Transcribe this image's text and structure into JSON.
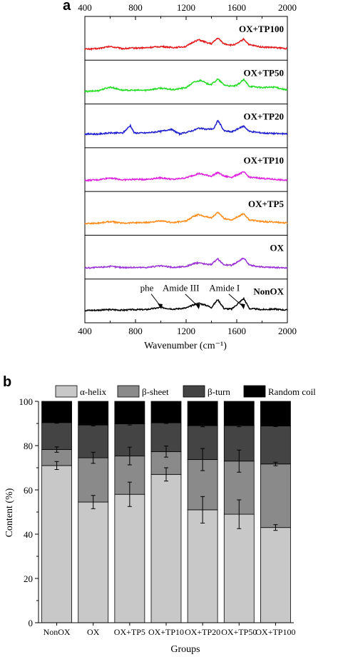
{
  "panels": {
    "a_label": "a",
    "b_label": "b"
  },
  "chart_data": [
    {
      "type": "line",
      "subtype": "stacked-spectra",
      "xlabel": "Wavenumber (cm⁻¹)",
      "xlim": [
        400,
        2000
      ],
      "xticks": [
        400,
        800,
        1200,
        1600,
        2000
      ],
      "grid": false,
      "series": [
        {
          "name": "OX+TP100",
          "color": "#e31a1c",
          "points": [
            [
              400,
              0.2
            ],
            [
              500,
              0.22
            ],
            [
              600,
              0.3
            ],
            [
              700,
              0.22
            ],
            [
              780,
              0.24
            ],
            [
              880,
              0.25
            ],
            [
              1000,
              0.3
            ],
            [
              1100,
              0.26
            ],
            [
              1200,
              0.3
            ],
            [
              1260,
              0.48
            ],
            [
              1300,
              0.55
            ],
            [
              1360,
              0.45
            ],
            [
              1400,
              0.4
            ],
            [
              1450,
              0.62
            ],
            [
              1500,
              0.4
            ],
            [
              1560,
              0.35
            ],
            [
              1600,
              0.4
            ],
            [
              1655,
              0.58
            ],
            [
              1700,
              0.36
            ],
            [
              1800,
              0.28
            ],
            [
              1900,
              0.26
            ],
            [
              2000,
              0.22
            ]
          ]
        },
        {
          "name": "OX+TP50",
          "color": "#22dd22",
          "points": [
            [
              400,
              0.25
            ],
            [
              500,
              0.28
            ],
            [
              600,
              0.42
            ],
            [
              700,
              0.3
            ],
            [
              780,
              0.3
            ],
            [
              880,
              0.3
            ],
            [
              1000,
              0.38
            ],
            [
              1100,
              0.32
            ],
            [
              1200,
              0.4
            ],
            [
              1260,
              0.6
            ],
            [
              1320,
              0.68
            ],
            [
              1360,
              0.55
            ],
            [
              1400,
              0.52
            ],
            [
              1450,
              0.72
            ],
            [
              1500,
              0.5
            ],
            [
              1560,
              0.45
            ],
            [
              1600,
              0.48
            ],
            [
              1655,
              0.7
            ],
            [
              1700,
              0.45
            ],
            [
              1800,
              0.4
            ],
            [
              1900,
              0.42
            ],
            [
              2000,
              0.3
            ]
          ]
        },
        {
          "name": "OX+TP20",
          "color": "#1f1fd0",
          "points": [
            [
              400,
              0.3
            ],
            [
              500,
              0.3
            ],
            [
              600,
              0.34
            ],
            [
              700,
              0.34
            ],
            [
              760,
              0.62
            ],
            [
              790,
              0.34
            ],
            [
              880,
              0.34
            ],
            [
              1000,
              0.4
            ],
            [
              1080,
              0.48
            ],
            [
              1150,
              0.3
            ],
            [
              1200,
              0.36
            ],
            [
              1260,
              0.44
            ],
            [
              1300,
              0.52
            ],
            [
              1360,
              0.48
            ],
            [
              1420,
              0.5
            ],
            [
              1450,
              0.82
            ],
            [
              1500,
              0.42
            ],
            [
              1560,
              0.38
            ],
            [
              1655,
              0.6
            ],
            [
              1700,
              0.4
            ],
            [
              1800,
              0.34
            ],
            [
              1900,
              0.32
            ],
            [
              2000,
              0.3
            ]
          ]
        },
        {
          "name": "OX+TP10",
          "color": "#e020e0",
          "points": [
            [
              400,
              0.2
            ],
            [
              500,
              0.22
            ],
            [
              600,
              0.3
            ],
            [
              700,
              0.22
            ],
            [
              780,
              0.24
            ],
            [
              880,
              0.24
            ],
            [
              1000,
              0.3
            ],
            [
              1100,
              0.24
            ],
            [
              1200,
              0.3
            ],
            [
              1260,
              0.4
            ],
            [
              1300,
              0.46
            ],
            [
              1360,
              0.4
            ],
            [
              1400,
              0.36
            ],
            [
              1450,
              0.5
            ],
            [
              1500,
              0.36
            ],
            [
              1560,
              0.32
            ],
            [
              1655,
              0.52
            ],
            [
              1700,
              0.32
            ],
            [
              1800,
              0.28
            ],
            [
              1900,
              0.24
            ],
            [
              2000,
              0.2
            ]
          ]
        },
        {
          "name": "OX+TP5",
          "color": "#ff8c1a",
          "points": [
            [
              400,
              0.22
            ],
            [
              500,
              0.24
            ],
            [
              600,
              0.3
            ],
            [
              700,
              0.24
            ],
            [
              780,
              0.26
            ],
            [
              880,
              0.26
            ],
            [
              1000,
              0.32
            ],
            [
              1100,
              0.26
            ],
            [
              1200,
              0.32
            ],
            [
              1260,
              0.5
            ],
            [
              1300,
              0.56
            ],
            [
              1360,
              0.48
            ],
            [
              1400,
              0.44
            ],
            [
              1450,
              0.64
            ],
            [
              1500,
              0.42
            ],
            [
              1560,
              0.36
            ],
            [
              1655,
              0.6
            ],
            [
              1700,
              0.36
            ],
            [
              1800,
              0.3
            ],
            [
              1900,
              0.28
            ],
            [
              2000,
              0.24
            ]
          ]
        },
        {
          "name": "OX",
          "color": "#9b30d9",
          "points": [
            [
              400,
              0.2
            ],
            [
              500,
              0.22
            ],
            [
              600,
              0.26
            ],
            [
              700,
              0.22
            ],
            [
              780,
              0.22
            ],
            [
              880,
              0.22
            ],
            [
              1000,
              0.28
            ],
            [
              1100,
              0.22
            ],
            [
              1200,
              0.26
            ],
            [
              1260,
              0.36
            ],
            [
              1300,
              0.4
            ],
            [
              1360,
              0.34
            ],
            [
              1400,
              0.34
            ],
            [
              1450,
              0.54
            ],
            [
              1500,
              0.32
            ],
            [
              1560,
              0.3
            ],
            [
              1655,
              0.58
            ],
            [
              1700,
              0.3
            ],
            [
              1800,
              0.24
            ],
            [
              1900,
              0.22
            ],
            [
              2000,
              0.2
            ]
          ]
        },
        {
          "name": "NonOX",
          "color": "#000000",
          "points": [
            [
              400,
              0.25
            ],
            [
              500,
              0.26
            ],
            [
              600,
              0.28
            ],
            [
              700,
              0.26
            ],
            [
              780,
              0.28
            ],
            [
              880,
              0.28
            ],
            [
              1000,
              0.36
            ],
            [
              1100,
              0.3
            ],
            [
              1200,
              0.34
            ],
            [
              1260,
              0.46
            ],
            [
              1300,
              0.52
            ],
            [
              1360,
              0.44
            ],
            [
              1400,
              0.36
            ],
            [
              1450,
              0.66
            ],
            [
              1500,
              0.32
            ],
            [
              1560,
              0.3
            ],
            [
              1655,
              0.7
            ],
            [
              1700,
              0.32
            ],
            [
              1800,
              0.28
            ],
            [
              1900,
              0.3
            ],
            [
              2000,
              0.26
            ]
          ]
        }
      ],
      "annotations": [
        {
          "text": "phe",
          "x": 1003
        },
        {
          "text": "Amide III",
          "x": 1300
        },
        {
          "text": "Amide I",
          "x": 1655
        }
      ]
    },
    {
      "type": "bar",
      "subtype": "stacked",
      "categories": [
        "NonOX",
        "OX",
        "OX+TP5",
        "OX+TP10",
        "OX+TP20",
        "OX+TP50",
        "OX+TP100"
      ],
      "xlabel": "Groups",
      "ylabel": "Content (%)",
      "ylim": [
        0,
        100
      ],
      "yticks": [
        0,
        20,
        40,
        60,
        80,
        100
      ],
      "legend_position": "top",
      "series": [
        {
          "name": "α-helix",
          "color": "#c8c8c8",
          "values": [
            71.0,
            54.5,
            58.0,
            67.0,
            51.0,
            49.0,
            43.0
          ],
          "errors": [
            1.8,
            3.0,
            5.5,
            3.0,
            6.0,
            6.5,
            1.3
          ]
        },
        {
          "name": "β-sheet",
          "color": "#8a8a8a",
          "values": [
            7.2,
            20.0,
            17.3,
            10.3,
            22.7,
            24.0,
            28.7
          ],
          "errors": [
            1.2,
            2.5,
            4.0,
            2.5,
            5.0,
            5.0,
            0.8
          ]
        },
        {
          "name": "β-turn",
          "color": "#444444",
          "values": [
            12.2,
            14.8,
            14.5,
            13.0,
            15.3,
            16.0,
            17.2
          ],
          "errors": [
            0.3,
            0.4,
            0.5,
            0.3,
            0.5,
            0.5,
            0.3
          ]
        },
        {
          "name": "Random coil",
          "color": "#000000",
          "values": [
            9.6,
            10.7,
            10.2,
            9.7,
            11.0,
            11.0,
            11.1
          ],
          "errors": [
            0,
            0,
            0,
            0,
            0,
            0,
            0
          ]
        }
      ]
    }
  ]
}
